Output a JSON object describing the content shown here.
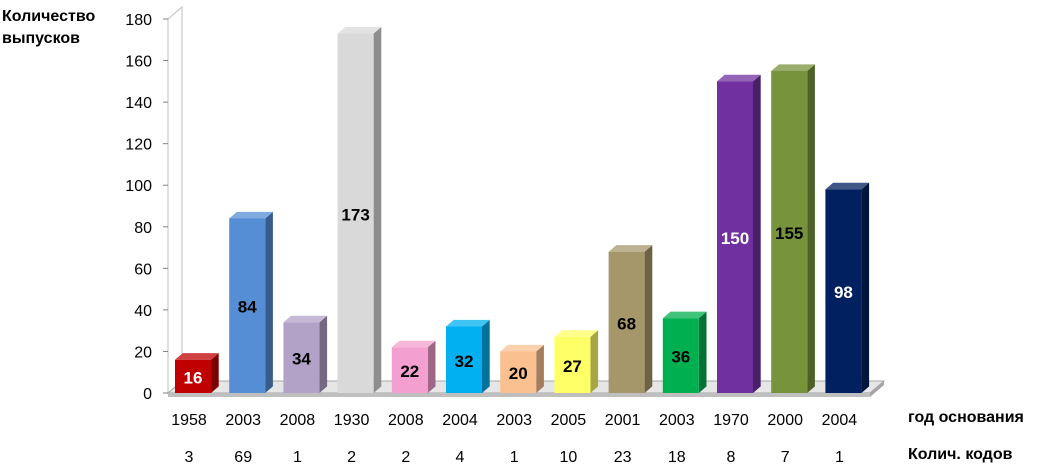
{
  "chart_data": {
    "type": "bar",
    "ylabel_line1": "Количество",
    "ylabel_line2": "выпусков",
    "ylim": [
      0,
      180
    ],
    "yticks": [
      "0",
      "20",
      "40",
      "60",
      "80",
      "100",
      "120",
      "140",
      "160",
      "180"
    ],
    "values": [
      16,
      84,
      34,
      173,
      22,
      32,
      20,
      27,
      68,
      36,
      150,
      155,
      98
    ],
    "value_labels": [
      "16",
      "84",
      "34",
      "173",
      "22",
      "32",
      "20",
      "27",
      "68",
      "36",
      "150",
      "155",
      "98"
    ],
    "years": [
      "1958",
      "2003",
      "2008",
      "1930",
      "2008",
      "2004",
      "2003",
      "2005",
      "2001",
      "2003",
      "1970",
      "2000",
      "2004"
    ],
    "codes": [
      "3",
      "69",
      "1",
      "2",
      "2",
      "4",
      "1",
      "10",
      "23",
      "18",
      "8",
      "7",
      "1"
    ],
    "row1_label": "год основания",
    "row2_label": "Колич. кодов",
    "colors": [
      "#c00000",
      "#558ed5",
      "#b3a2c7",
      "#d9d9d9",
      "#f39fcf",
      "#00b0f0",
      "#fac090",
      "#ffff66",
      "#a6976b",
      "#00b050",
      "#7030a0",
      "#77933c",
      "#002060"
    ],
    "value_label_colors": [
      "#ffffff",
      "#000000",
      "#000000",
      "#000000",
      "#000000",
      "#000000",
      "#000000",
      "#000000",
      "#000000",
      "#000000",
      "#ffffff",
      "#000000",
      "#ffffff"
    ],
    "grid": false,
    "legend": "none"
  }
}
